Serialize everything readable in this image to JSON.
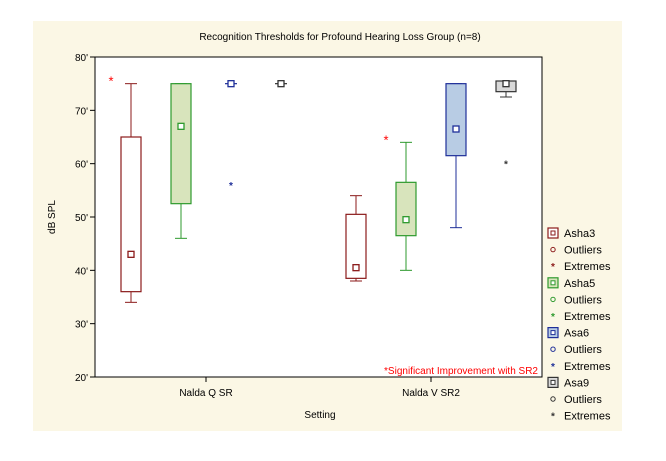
{
  "chart_data": {
    "type": "box",
    "title": "Recognition Thresholds for Profound Hearing Loss Group (n=8)",
    "xlabel": "Setting",
    "ylabel": "dB SPL",
    "categories": [
      "Nalda Q SR",
      "Nalda V SR2"
    ],
    "ylim": [
      20,
      80
    ],
    "yticks": [
      20,
      30,
      40,
      50,
      60,
      70,
      80
    ],
    "ytick_labels": [
      "20'",
      "30'",
      "40'",
      "50'",
      "60'",
      "70'",
      "80'"
    ],
    "grid": false,
    "legend_position": "right",
    "annotation": "*Significant Improvement with SR2",
    "colors": {
      "background": "#fbf7e5",
      "plot_background": "#ffffff",
      "marker": "#ff0000",
      "annotation": "#ff0000"
    },
    "series": [
      {
        "name": "Asha3",
        "stroke": "#8b1a1a",
        "fill": "#ffffff",
        "boxes": [
          {
            "category": "Nalda Q SR",
            "whisker_low": 34,
            "q1": 36,
            "median": 43,
            "q3": 65,
            "whisker_high": 75,
            "marker": "*"
          },
          {
            "category": "Nalda V SR2",
            "whisker_low": 38,
            "q1": 38.5,
            "median": 40.5,
            "q3": 50.5,
            "whisker_high": 54,
            "marker": ""
          }
        ]
      },
      {
        "name": "Asha5",
        "stroke": "#2e9a2e",
        "fill": "#d8e4bc",
        "boxes": [
          {
            "category": "Nalda Q SR",
            "whisker_low": 46,
            "q1": 52.5,
            "median": 67,
            "q3": 75,
            "whisker_high": 75,
            "marker": ""
          },
          {
            "category": "Nalda V SR2",
            "whisker_low": 40,
            "q1": 46.5,
            "median": 49.5,
            "q3": 56.5,
            "whisker_high": 64,
            "marker": "*"
          }
        ]
      },
      {
        "name": "Asa6",
        "stroke": "#1f2f99",
        "fill": "#b8cce4",
        "boxes": [
          {
            "category": "Nalda Q SR",
            "whisker_low": 75,
            "q1": 75,
            "median": 75,
            "q3": 75,
            "whisker_high": 75,
            "marker": "",
            "extremes": [
              56
            ]
          },
          {
            "category": "Nalda V SR2",
            "whisker_low": 48,
            "q1": 61.5,
            "median": 66.5,
            "q3": 75,
            "whisker_high": 75,
            "marker": ""
          }
        ]
      },
      {
        "name": "Asa9",
        "stroke": "#333333",
        "fill": "#d9d9d9",
        "boxes": [
          {
            "category": "Nalda Q SR",
            "whisker_low": 75,
            "q1": 75,
            "median": 75,
            "q3": 75,
            "whisker_high": 75,
            "marker": ""
          },
          {
            "category": "Nalda V SR2",
            "whisker_low": 72.5,
            "q1": 73.5,
            "median": 75,
            "q3": 75.5,
            "whisker_high": 75.5,
            "marker": "",
            "extremes": [
              60
            ]
          }
        ]
      }
    ],
    "legend": [
      {
        "label": "Asha3",
        "kind": "box",
        "series": "Asha3"
      },
      {
        "label": "Outliers",
        "kind": "outlier",
        "series": "Asha3"
      },
      {
        "label": "Extremes",
        "kind": "extreme",
        "series": "Asha3"
      },
      {
        "label": "Asha5",
        "kind": "box",
        "series": "Asha5"
      },
      {
        "label": "Outliers",
        "kind": "outlier",
        "series": "Asha5"
      },
      {
        "label": "Extremes",
        "kind": "extreme",
        "series": "Asha5"
      },
      {
        "label": "Asa6",
        "kind": "box",
        "series": "Asa6"
      },
      {
        "label": "Outliers",
        "kind": "outlier",
        "series": "Asa6"
      },
      {
        "label": "Extremes",
        "kind": "extreme",
        "series": "Asa6"
      },
      {
        "label": "Asa9",
        "kind": "box",
        "series": "Asa9"
      },
      {
        "label": "Outliers",
        "kind": "outlier",
        "series": "Asa9"
      },
      {
        "label": "Extremes",
        "kind": "extreme",
        "series": "Asa9"
      }
    ]
  }
}
